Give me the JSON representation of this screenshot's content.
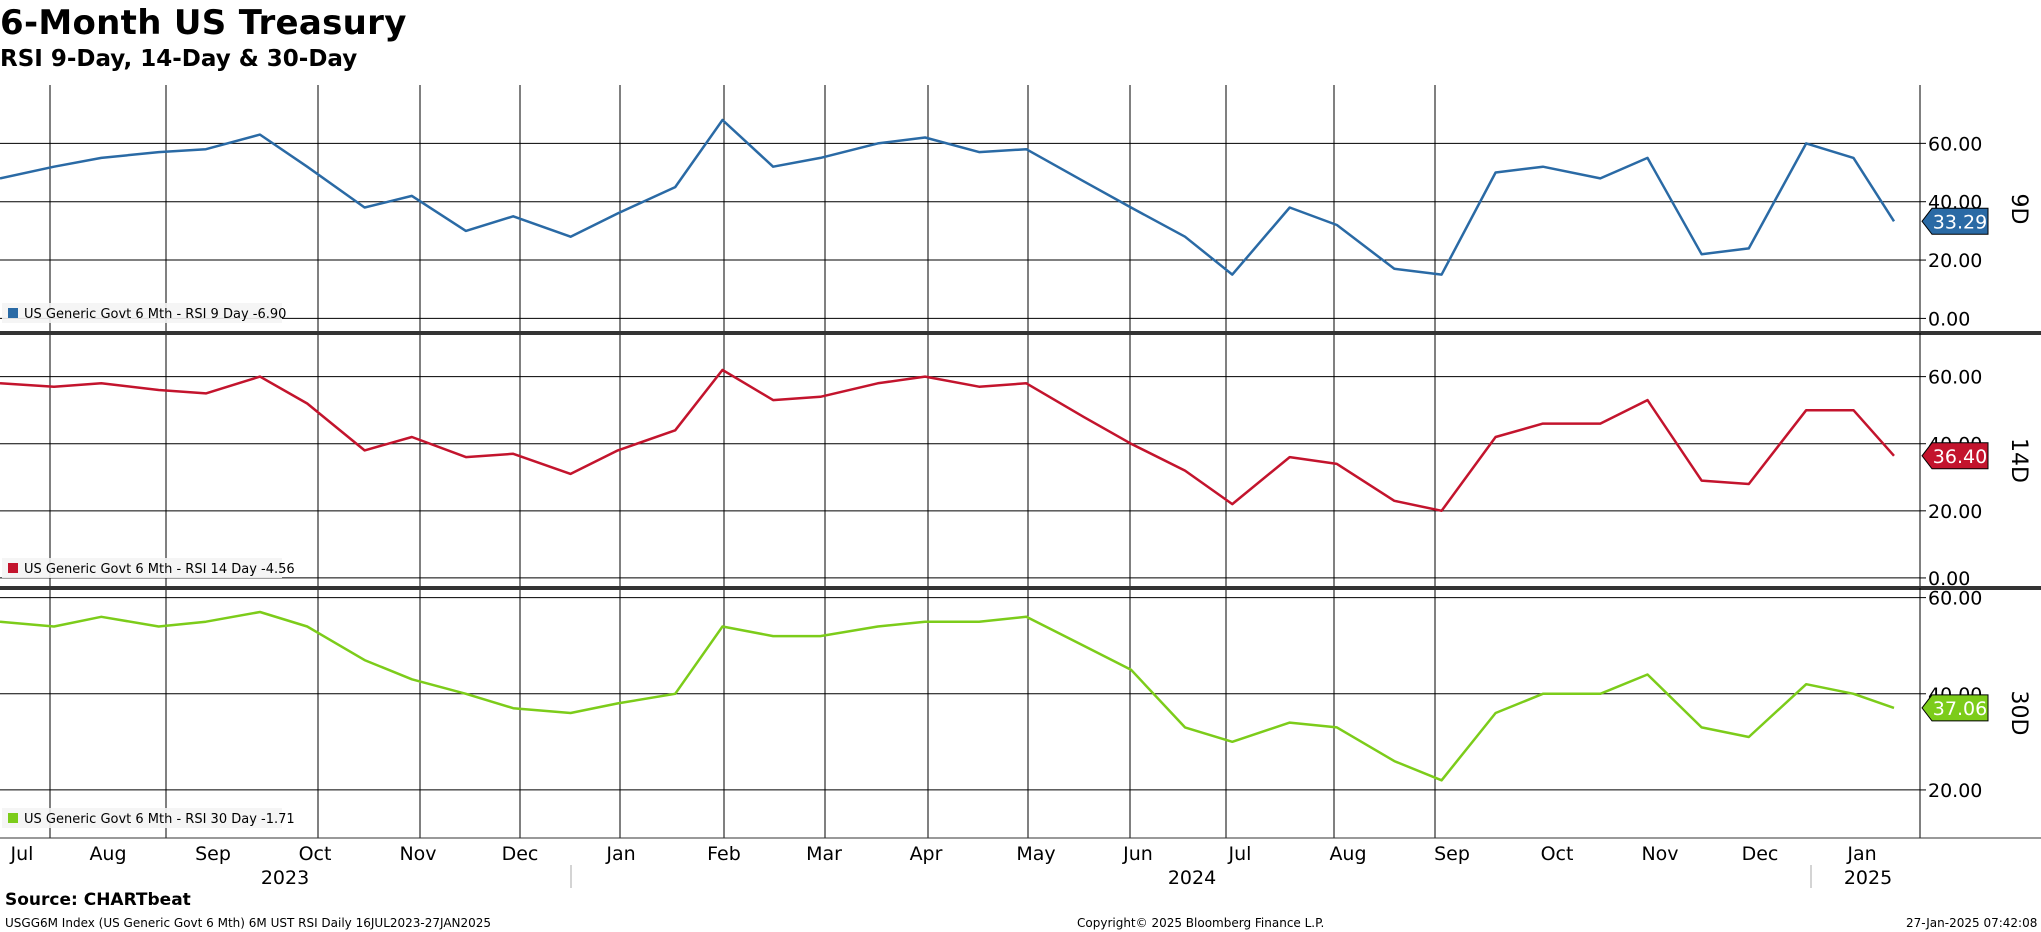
{
  "title": "6-Month US Treasury",
  "subtitle": "RSI 9-Day, 14-Day & 30-Day",
  "x_months": [
    "Jul",
    "Aug",
    "Sep",
    "Oct",
    "Nov",
    "Dec",
    "Jan",
    "Feb",
    "Mar",
    "Apr",
    "May",
    "Jun",
    "Jul",
    "Aug",
    "Sep",
    "Oct",
    "Nov",
    "Dec",
    "Jan"
  ],
  "x_years": [
    "2023",
    "2024",
    "2025"
  ],
  "footer": {
    "source": "Source: CHARTbeat",
    "left": "USGG6M Index (US Generic Govt 6 Mth) 6M UST RSI  Daily 16JUL2023-27JAN2025",
    "center": "Copyright© 2025 Bloomberg Finance L.P.",
    "right": "27-Jan-2025 07:42:08"
  },
  "colors": {
    "rsi9": "#2a6aa5",
    "rsi14": "#c3142d",
    "rsi30": "#7ccc1a"
  },
  "chart_data": [
    {
      "type": "line",
      "panel_label": "9D",
      "legend": "US Generic Govt 6 Mth - RSI 9 Day -6.90",
      "series": [
        {
          "name": "US Generic Govt 6 Mth - RSI 9 Day",
          "change": "-6.90",
          "last": "33.29",
          "color": "#2a6aa5",
          "x": [
            "2023-07-16",
            "2023-08-01",
            "2023-08-15",
            "2023-09-01",
            "2023-09-15",
            "2023-10-01",
            "2023-10-15",
            "2023-11-01",
            "2023-11-15",
            "2023-12-01",
            "2023-12-15",
            "2024-01-01",
            "2024-01-15",
            "2024-02-01",
            "2024-02-15",
            "2024-03-01",
            "2024-03-15",
            "2024-04-01",
            "2024-04-15",
            "2024-05-01",
            "2024-05-15",
            "2024-06-01",
            "2024-06-15",
            "2024-07-01",
            "2024-07-15",
            "2024-08-01",
            "2024-08-15",
            "2024-09-01",
            "2024-09-15",
            "2024-10-01",
            "2024-10-15",
            "2024-11-01",
            "2024-11-15",
            "2024-12-01",
            "2024-12-15",
            "2025-01-01",
            "2025-01-15",
            "2025-01-27"
          ],
          "y": [
            48,
            52,
            55,
            57,
            58,
            63,
            52,
            38,
            42,
            30,
            35,
            28,
            36,
            45,
            68,
            52,
            55,
            60,
            62,
            57,
            58,
            47,
            38,
            28,
            15,
            38,
            32,
            17,
            15,
            50,
            52,
            48,
            55,
            22,
            24,
            60,
            55,
            33.29
          ]
        }
      ],
      "yticks": [
        "60.00",
        "40.00",
        "20.00",
        "0.00"
      ],
      "ylim": [
        -5,
        80
      ]
    },
    {
      "type": "line",
      "panel_label": "14D",
      "legend": "US Generic Govt 6 Mth - RSI 14 Day -4.56",
      "series": [
        {
          "name": "US Generic Govt 6 Mth - RSI 14 Day",
          "change": "-4.56",
          "last": "36.40",
          "color": "#c3142d",
          "x": [
            "2023-07-16",
            "2023-08-01",
            "2023-08-15",
            "2023-09-01",
            "2023-09-15",
            "2023-10-01",
            "2023-10-15",
            "2023-11-01",
            "2023-11-15",
            "2023-12-01",
            "2023-12-15",
            "2024-01-01",
            "2024-01-15",
            "2024-02-01",
            "2024-02-15",
            "2024-03-01",
            "2024-03-15",
            "2024-04-01",
            "2024-04-15",
            "2024-05-01",
            "2024-05-15",
            "2024-06-01",
            "2024-06-15",
            "2024-07-01",
            "2024-07-15",
            "2024-08-01",
            "2024-08-15",
            "2024-09-01",
            "2024-09-15",
            "2024-10-01",
            "2024-10-15",
            "2024-11-01",
            "2024-11-15",
            "2024-12-01",
            "2024-12-15",
            "2025-01-01",
            "2025-01-15",
            "2025-01-27"
          ],
          "y": [
            58,
            57,
            58,
            56,
            55,
            60,
            52,
            38,
            42,
            36,
            37,
            31,
            38,
            44,
            62,
            53,
            54,
            58,
            60,
            57,
            58,
            48,
            40,
            32,
            22,
            36,
            34,
            23,
            20,
            42,
            46,
            46,
            53,
            29,
            28,
            50,
            50,
            36.4
          ]
        }
      ],
      "yticks": [
        "60.00",
        "40.00",
        "20.00",
        "0.00"
      ],
      "ylim": [
        -3,
        73
      ]
    },
    {
      "type": "line",
      "panel_label": "30D",
      "legend": "US Generic Govt 6 Mth - RSI 30 Day -1.71",
      "series": [
        {
          "name": "US Generic Govt 6 Mth - RSI 30 Day",
          "change": "-1.71",
          "last": "37.06",
          "color": "#7ccc1a",
          "x": [
            "2023-07-16",
            "2023-08-01",
            "2023-08-15",
            "2023-09-01",
            "2023-09-15",
            "2023-10-01",
            "2023-10-15",
            "2023-11-01",
            "2023-11-15",
            "2023-12-01",
            "2023-12-15",
            "2024-01-01",
            "2024-01-15",
            "2024-02-01",
            "2024-02-15",
            "2024-03-01",
            "2024-03-15",
            "2024-04-01",
            "2024-04-15",
            "2024-05-01",
            "2024-05-15",
            "2024-06-01",
            "2024-06-15",
            "2024-07-01",
            "2024-07-15",
            "2024-08-01",
            "2024-08-15",
            "2024-09-01",
            "2024-09-15",
            "2024-10-01",
            "2024-10-15",
            "2024-11-01",
            "2024-11-15",
            "2024-12-01",
            "2024-12-15",
            "2025-01-01",
            "2025-01-15",
            "2025-01-27"
          ],
          "y": [
            55,
            54,
            56,
            54,
            55,
            57,
            54,
            47,
            43,
            40,
            37,
            36,
            38,
            40,
            54,
            52,
            52,
            54,
            55,
            55,
            56,
            50,
            45,
            33,
            30,
            34,
            33,
            26,
            22,
            36,
            40,
            40,
            44,
            33,
            31,
            42,
            40,
            37.06
          ]
        }
      ],
      "yticks": [
        "60.00",
        "40.00",
        "20.00"
      ],
      "ylim": [
        10,
        62
      ]
    }
  ]
}
